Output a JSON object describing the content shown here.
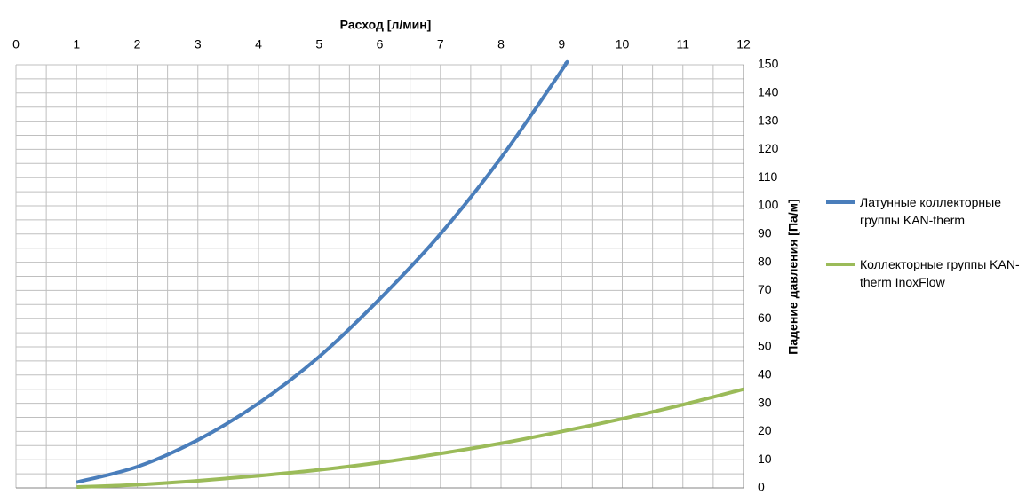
{
  "chart_data": {
    "type": "line",
    "x_title": "Расход [л/мин]",
    "y_title": "Падение давления [Па/м]",
    "series": [
      {
        "name": "Латунные коллекторные группы KAN-therm",
        "color": "#4a7ebb",
        "x": [
          1,
          2,
          3,
          4,
          5,
          6,
          7,
          8,
          9,
          9.05
        ],
        "values": [
          2,
          7.5,
          17,
          30,
          46.5,
          67,
          90,
          117,
          148,
          150
        ]
      },
      {
        "name": "Коллекторные группы KAN-therm InoxFlow",
        "color": "#9bbb59",
        "x": [
          1,
          2,
          3,
          4,
          5,
          6,
          7,
          8,
          9,
          10,
          11,
          12
        ],
        "values": [
          0.3,
          1.1,
          2.5,
          4.3,
          6.4,
          9,
          12.2,
          15.8,
          20,
          24.5,
          29.5,
          35
        ]
      }
    ],
    "xlim": [
      0,
      12
    ],
    "xticks": [
      0,
      1,
      2,
      3,
      4,
      5,
      6,
      7,
      8,
      9,
      10,
      11,
      12
    ],
    "ylim": [
      0,
      150
    ],
    "yticks": [
      0,
      10,
      20,
      30,
      40,
      50,
      60,
      70,
      80,
      90,
      100,
      110,
      120,
      130,
      140,
      150
    ],
    "grid": true,
    "legend": "right"
  }
}
